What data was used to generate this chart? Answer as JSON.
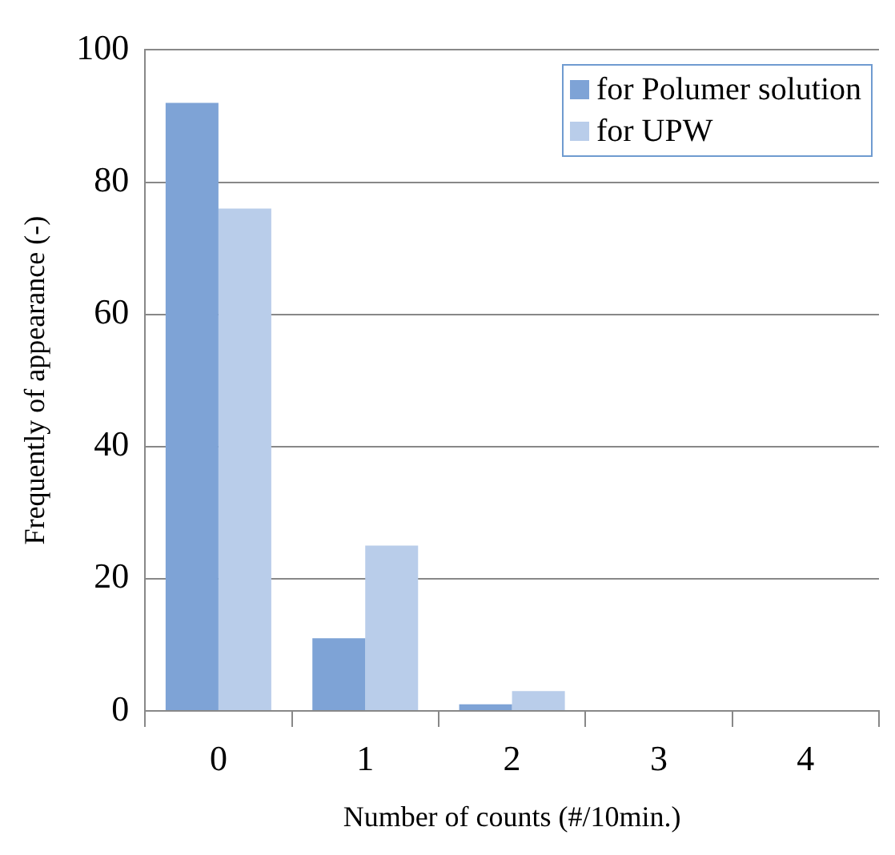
{
  "chart_data": {
    "type": "bar",
    "xlabel": "Number of counts (#/10min.)",
    "ylabel": "Frequently of appearance (-)",
    "categories": [
      "0",
      "1",
      "2",
      "3",
      "4"
    ],
    "series": [
      {
        "name": "for Polumer solution",
        "color": "#7ea3d6",
        "values": [
          92,
          11,
          1,
          0,
          0
        ]
      },
      {
        "name": "for UPW",
        "color": "#b9cdea",
        "values": [
          76,
          25,
          3,
          0,
          0
        ]
      }
    ],
    "ylim": [
      0,
      100
    ],
    "yticks": [
      0,
      20,
      40,
      60,
      80,
      100
    ],
    "grid": "y",
    "legend": "top right"
  }
}
